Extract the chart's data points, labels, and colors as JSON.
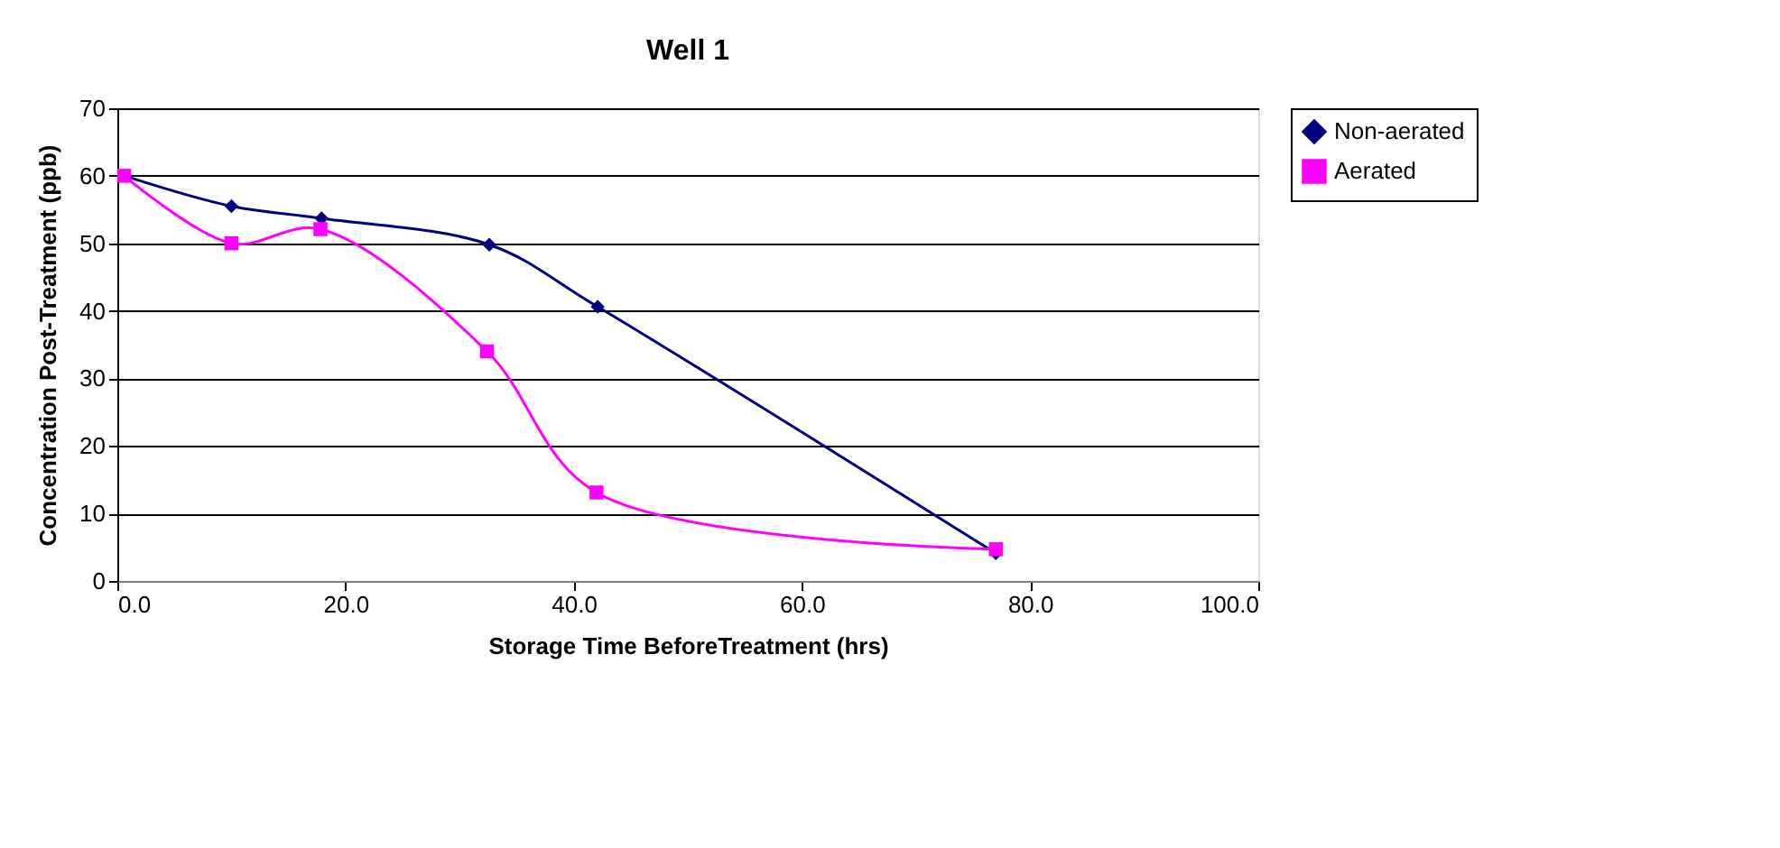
{
  "chart_data": {
    "type": "line",
    "title": "Well 1",
    "xlabel": "Storage Time BeforeTreatment (hrs)",
    "ylabel": "Concentration Post-Treatment (ppb)",
    "series": [
      {
        "name": "Non-aerated",
        "color": "#000080",
        "marker": "diamond",
        "x": [
          0.6,
          10,
          17.9,
          32.6,
          42.1,
          77.0
        ],
        "values": [
          60,
          55.5,
          53.7,
          49.8,
          40.6,
          4.1
        ]
      },
      {
        "name": "Aerated",
        "color": "#ff00ff",
        "marker": "square",
        "x": [
          0.6,
          10,
          17.8,
          32.4,
          42,
          77.0
        ],
        "values": [
          60,
          50,
          52.1,
          34,
          13.1,
          4.7
        ]
      }
    ],
    "xlim": [
      0,
      100
    ],
    "xticks": [
      {
        "value": 0,
        "label": "0.0"
      },
      {
        "value": 20,
        "label": "20.0"
      },
      {
        "value": 40,
        "label": "40.0"
      },
      {
        "value": 60,
        "label": "60.0"
      },
      {
        "value": 80,
        "label": "80.0"
      },
      {
        "value": 100,
        "label": "100.0"
      }
    ],
    "ylim": [
      0,
      70
    ],
    "yticks": [
      0,
      10,
      20,
      30,
      40,
      50,
      60,
      70
    ],
    "grid": "y",
    "legend": "right",
    "line_style": "solid"
  }
}
